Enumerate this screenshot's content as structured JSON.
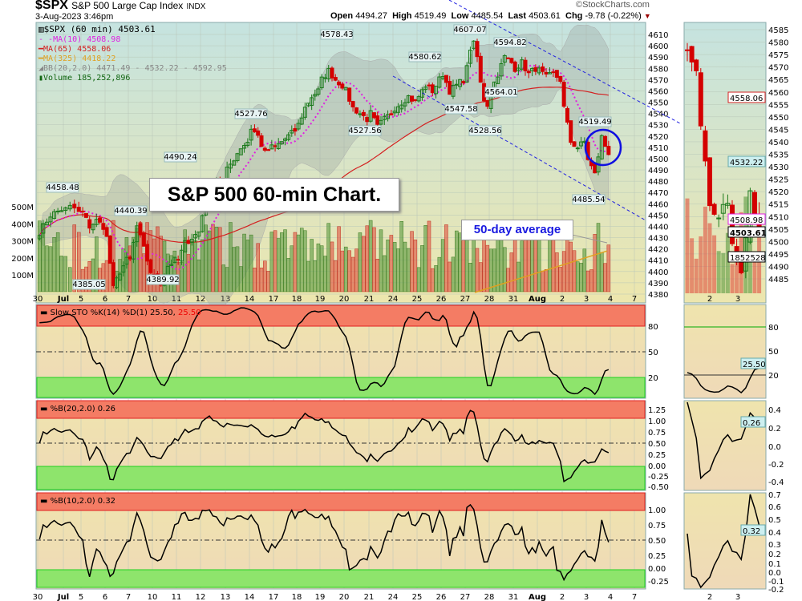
{
  "header": {
    "symbol": "$SPX",
    "name": "S&P 500 Large Cap Index",
    "exchange": "INDX",
    "datetime": "3-Aug-2023 3:46pm",
    "brand": "©StockCharts.com",
    "open_label": "Open",
    "open": "4494.27",
    "high_label": "High",
    "high": "4519.49",
    "low_label": "Low",
    "low": "4485.54",
    "last_label": "Last",
    "last": "4503.61",
    "chg_label": "Chg",
    "chg": "-9.78 (-0.22%)"
  },
  "legend": {
    "price": "$SPX (60 min) 4503.61",
    "ma10": "MA(10) 4508.98",
    "ma65": "MA(65) 4558.06",
    "ma325": "MA(325) 4418.22",
    "bb": "BB(20,2.0) 4471.49 - 4532.22 - 4592.95",
    "volume": "Volume 185,252,896"
  },
  "annotations": {
    "title": "S&P 500 60-min Chart.",
    "avg_callout": "50-day average",
    "price_labels": [
      "4458.48",
      "4385.05",
      "4440.39",
      "4389.92",
      "4490.24",
      "4527.76",
      "4578.43",
      "4527.56",
      "4580.62",
      "4547.58",
      "4607.07",
      "4528.56",
      "4594.82",
      "4564.01",
      "4519.49",
      "4485.54"
    ]
  },
  "colors": {
    "up": "#1a7a1a",
    "down": "#d40000",
    "ma10": "#e020e0",
    "ma65": "#d42020",
    "ma325": "#e0a020",
    "channel": "#2020e0",
    "overbought": "#f47c64",
    "oversold": "#8ee46c"
  },
  "chart_data": {
    "type": "candlestick",
    "interval": "60 min",
    "x_tick_labels": [
      "30",
      "Jul",
      "5",
      "6",
      "7",
      "10",
      "11",
      "12",
      "13",
      "14",
      "17",
      "18",
      "19",
      "20",
      "21",
      "24",
      "25",
      "26",
      "27",
      "28",
      "31",
      "Aug",
      "2",
      "3",
      "4",
      "7"
    ],
    "y_ticks": [
      4380,
      4390,
      4400,
      4410,
      4420,
      4430,
      4440,
      4450,
      4460,
      4470,
      4480,
      4490,
      4500,
      4510,
      4520,
      4530,
      4540,
      4550,
      4560,
      4570,
      4580,
      4590,
      4600,
      4610
    ],
    "volume_ticks": [
      "100M",
      "200M",
      "300M",
      "400M",
      "500M"
    ],
    "sessions": [
      {
        "date": "Jun 30",
        "path": [
          4435,
          4450,
          4455
        ]
      },
      {
        "date": "Jul 3",
        "path": [
          4455,
          4458,
          4452
        ]
      },
      {
        "date": "Jul 5",
        "path": [
          4452,
          4440,
          4445,
          4440
        ]
      },
      {
        "date": "Jul 6",
        "path": [
          4430,
          4385,
          4400,
          4410
        ]
      },
      {
        "date": "Jul 7",
        "path": [
          4410,
          4440,
          4420,
          4400
        ]
      },
      {
        "date": "Jul 10",
        "path": [
          4395,
          4390,
          4405,
          4410
        ]
      },
      {
        "date": "Jul 11",
        "path": [
          4410,
          4425,
          4430,
          4435
        ]
      },
      {
        "date": "Jul 12",
        "path": [
          4450,
          4470,
          4480,
          4475
        ]
      },
      {
        "date": "Jul 13",
        "path": [
          4490,
          4500,
          4510,
          4515
        ]
      },
      {
        "date": "Jul 14",
        "path": [
          4527,
          4520,
          4505,
          4510
        ]
      },
      {
        "date": "Jul 17",
        "path": [
          4510,
          4515,
          4520,
          4525
        ]
      },
      {
        "date": "Jul 18",
        "path": [
          4530,
          4545,
          4555,
          4560
        ]
      },
      {
        "date": "Jul 19",
        "path": [
          4570,
          4578,
          4570,
          4565
        ]
      },
      {
        "date": "Jul 20",
        "path": [
          4560,
          4545,
          4540,
          4535
        ]
      },
      {
        "date": "Jul 21",
        "path": [
          4540,
          4528,
          4535,
          4540
        ]
      },
      {
        "date": "Jul 24",
        "path": [
          4545,
          4550,
          4555,
          4550
        ]
      },
      {
        "date": "Jul 25",
        "path": [
          4555,
          4565,
          4560,
          4570
        ]
      },
      {
        "date": "Jul 26",
        "path": [
          4575,
          4560,
          4565,
          4570
        ]
      },
      {
        "date": "Jul 27",
        "path": [
          4580,
          4607,
          4590,
          4555,
          4548
        ]
      },
      {
        "date": "Jul 28",
        "path": [
          4560,
          4575,
          4590,
          4585
        ]
      },
      {
        "date": "Jul 31",
        "path": [
          4580,
          4585,
          4575,
          4580
        ]
      },
      {
        "date": "Aug 1",
        "path": [
          4578,
          4572,
          4575,
          4570
        ]
      },
      {
        "date": "Aug 2",
        "path": [
          4545,
          4515,
          4510,
          4515
        ]
      },
      {
        "date": "Aug 3",
        "path": [
          4500,
          4486,
          4519,
          4503.61
        ]
      }
    ],
    "mini_panel": {
      "y_ticks": [
        4485,
        4490,
        4495,
        4500,
        4505,
        4510,
        4515,
        4520,
        4525,
        4530,
        4535,
        4540,
        4545,
        4550,
        4555,
        4560,
        4565,
        4570,
        4575,
        4580,
        4585
      ],
      "x_tick_labels": [
        "2",
        "3"
      ],
      "tags": {
        "ma65": "4558.06",
        "bb_mid": "4532.22",
        "ma10": "4508.98",
        "last": "4503.61",
        "volume": "1852528"
      }
    },
    "indicators": [
      {
        "name": "Slow STO %K(14) %D(1) 25.50,",
        "extra": "25.50",
        "ticks": [
          "80",
          "50",
          "20"
        ],
        "mini_ticks": [
          "80",
          "50",
          "20"
        ],
        "tag": "25.50",
        "overbought": 80,
        "oversold": 20,
        "value": 25.5
      },
      {
        "name": "%B(20,2.0) 0.26",
        "ticks": [
          "1.25",
          "1.00",
          "0.75",
          "0.50",
          "0.25",
          "0.00",
          "-0.25",
          "-0.50"
        ],
        "mini_ticks": [
          "0.4",
          "0.2",
          "0.0",
          "-0.2",
          "-0.4"
        ],
        "tag": "0.26",
        "value": 0.26
      },
      {
        "name": "%B(10,2.0) 0.32",
        "ticks": [
          "1.00",
          "0.75",
          "0.50",
          "0.25",
          "0.00",
          "-0.25"
        ],
        "mini_ticks": [
          "0.7",
          "0.6",
          "0.5",
          "0.4",
          "0.3",
          "0.2",
          "0.1",
          "0.0",
          "-0.1",
          "-0.2"
        ],
        "tag": "0.32",
        "value": 0.32
      }
    ]
  }
}
